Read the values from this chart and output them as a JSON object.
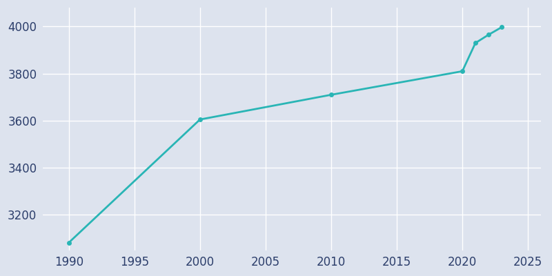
{
  "years": [
    1990,
    2000,
    2010,
    2020,
    2021,
    2022,
    2023
  ],
  "population": [
    3082,
    3605,
    3710,
    3810,
    3930,
    3965,
    3997
  ],
  "line_color": "#29b5b5",
  "marker": "o",
  "marker_size": 4,
  "line_width": 2,
  "bg_outer": "#dde3ee",
  "bg_plot": "#dde3ee",
  "grid_color": "#ffffff",
  "tick_color": "#2c3e6b",
  "xlim": [
    1988,
    2026
  ],
  "ylim": [
    3050,
    4080
  ],
  "xticks": [
    1990,
    1995,
    2000,
    2005,
    2010,
    2015,
    2020,
    2025
  ],
  "yticks": [
    3200,
    3400,
    3600,
    3800,
    4000
  ],
  "tick_fontsize": 12
}
